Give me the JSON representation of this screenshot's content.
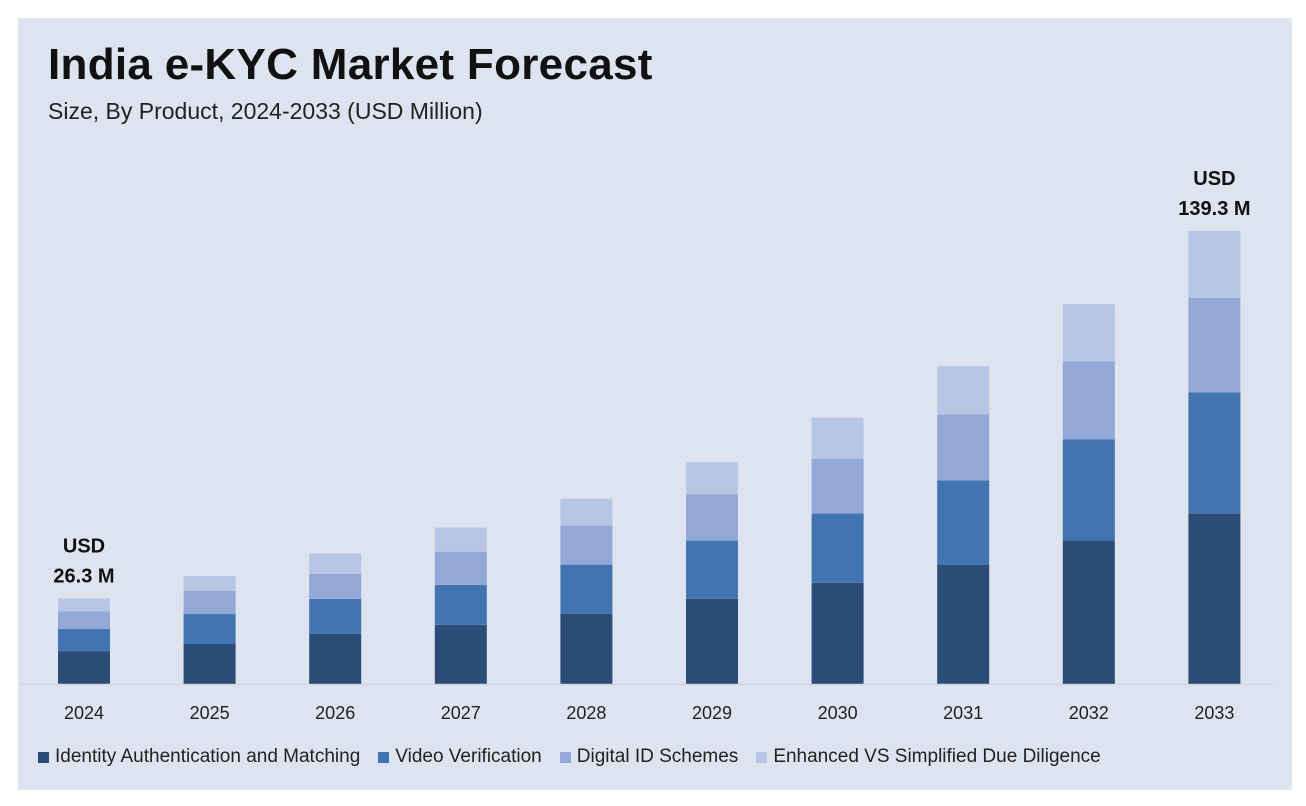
{
  "chart_data": {
    "type": "bar",
    "stacked": true,
    "title": "India e-KYC Market Forecast",
    "subtitle": "Size, By Product, 2024-2033 (USD Million)",
    "categories": [
      "2024",
      "2025",
      "2026",
      "2027",
      "2028",
      "2029",
      "2030",
      "2031",
      "2032",
      "2033"
    ],
    "series": [
      {
        "name": "Identity Authentication and Matching",
        "color": "#2b4c76",
        "values": [
          10.0,
          12.3,
          15.4,
          18.2,
          21.6,
          26.2,
          31.1,
          36.7,
          44.1,
          52.4
        ]
      },
      {
        "name": "Video Verification",
        "color": "#4174b0",
        "values": [
          6.9,
          9.2,
          10.8,
          12.3,
          15.1,
          17.9,
          21.3,
          25.9,
          31.1,
          37.3
        ]
      },
      {
        "name": "Digital ID Schemes",
        "color": "#93a8d6",
        "values": [
          5.4,
          7.1,
          7.7,
          10.2,
          12.0,
          14.2,
          16.9,
          20.3,
          24.0,
          29.0
        ]
      },
      {
        "name": "Enhanced VS Simplified Due Diligence",
        "color": "#b8c6e6",
        "values": [
          4.0,
          4.6,
          6.2,
          7.4,
          8.3,
          9.9,
          12.6,
          14.8,
          17.6,
          20.6
        ]
      }
    ],
    "annotations": [
      {
        "category": "2024",
        "line1": "USD",
        "line2": "26.3 M"
      },
      {
        "category": "2033",
        "line1": "USD",
        "line2": "139.3 M"
      }
    ],
    "ylim": [
      0,
      139.3
    ],
    "grid": false,
    "legend_position": "bottom"
  }
}
